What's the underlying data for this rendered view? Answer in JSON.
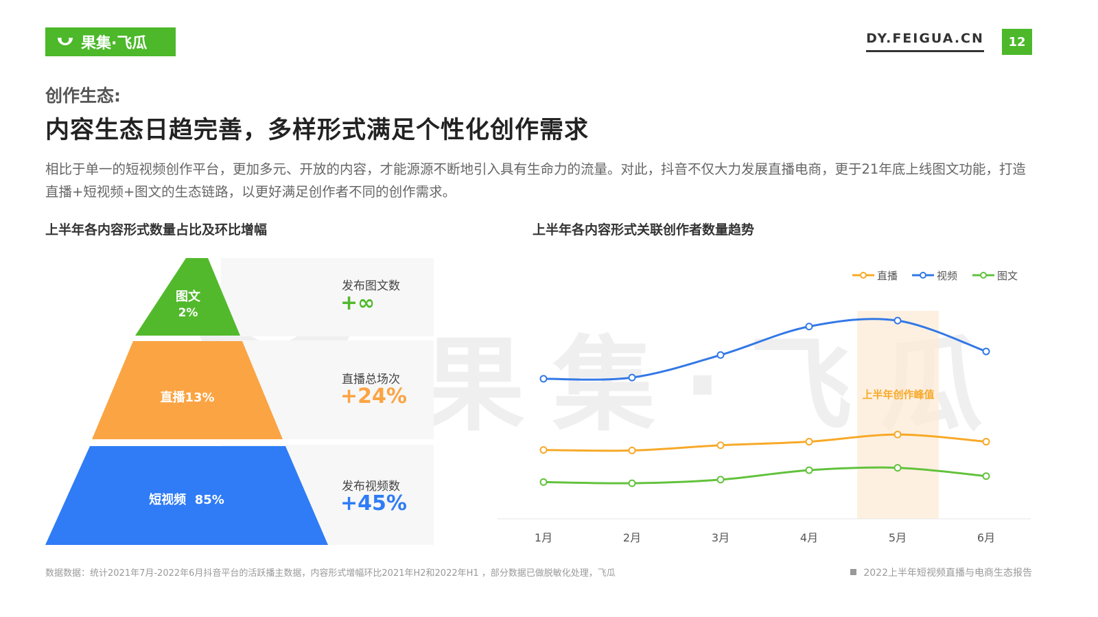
{
  "header": {
    "logo_text": "果集·飞瓜",
    "site": "DY.FEIGUA.CN",
    "page_number": "12",
    "brand_color": "#4cb82a"
  },
  "section_label": "创作生态:",
  "headline": "内容生态日趋完善，多样形式满足个性化创作需求",
  "description": "相比于单一的短视频创作平台，更加多元、开放的内容，才能源源不断地引入具有生命力的流量。对此，抖音不仅大力发展直播电商，更于21年底上线图文功能，打造直播+短视频+图文的生态链路，以更好满足创作者不同的创作需求。",
  "left_chart_title": "上半年各内容形式数量占比及环比增幅",
  "right_chart_title": "上半年各内容形式关联创作者数量趋势",
  "watermark_text": "果集·飞瓜",
  "chart_data": [
    {
      "type": "pyramid",
      "levels": [
        {
          "name": "图文",
          "share_label": "2%",
          "share": 2,
          "color": "#52b92c",
          "metric_label": "发布图文数",
          "metric_value": "+∞"
        },
        {
          "name": "直播",
          "share_label": "直播13%",
          "share": 13,
          "color": "#fba443",
          "metric_label": "直播总场次",
          "metric_value": "+24%"
        },
        {
          "name": "短视频",
          "share_label": "短视频  85%",
          "share": 85,
          "color": "#2f7cf6",
          "metric_label": "发布视频数",
          "metric_value": "+45%"
        }
      ]
    },
    {
      "type": "line",
      "categories": [
        "1月",
        "2月",
        "3月",
        "4月",
        "5月",
        "6月"
      ],
      "series": [
        {
          "name": "直播",
          "color": "#f7a928",
          "values": [
            29,
            28.8,
            31,
            32.5,
            35.5,
            32.5
          ]
        },
        {
          "name": "视频",
          "color": "#3278e6",
          "values": [
            59,
            59.5,
            69,
            81,
            83.5,
            70.5
          ]
        },
        {
          "name": "图文",
          "color": "#62c23c",
          "values": [
            15.5,
            15,
            16.5,
            20.5,
            21.5,
            18
          ]
        }
      ],
      "ylim": [
        0,
        100
      ],
      "legend": "top-right",
      "highlight": {
        "category": "5月",
        "label": "上半年创作峰值",
        "color": "#f7a928"
      }
    }
  ],
  "footer": {
    "source": "数据数据：统计2021年7月-2022年6月抖音平台的活跃播主数据，内容形式增幅环比2021年H2和2022年H1 ，部分数据已做脱敏化处理，飞瓜",
    "report": "2022上半年短视频直播与电商生态报告"
  }
}
